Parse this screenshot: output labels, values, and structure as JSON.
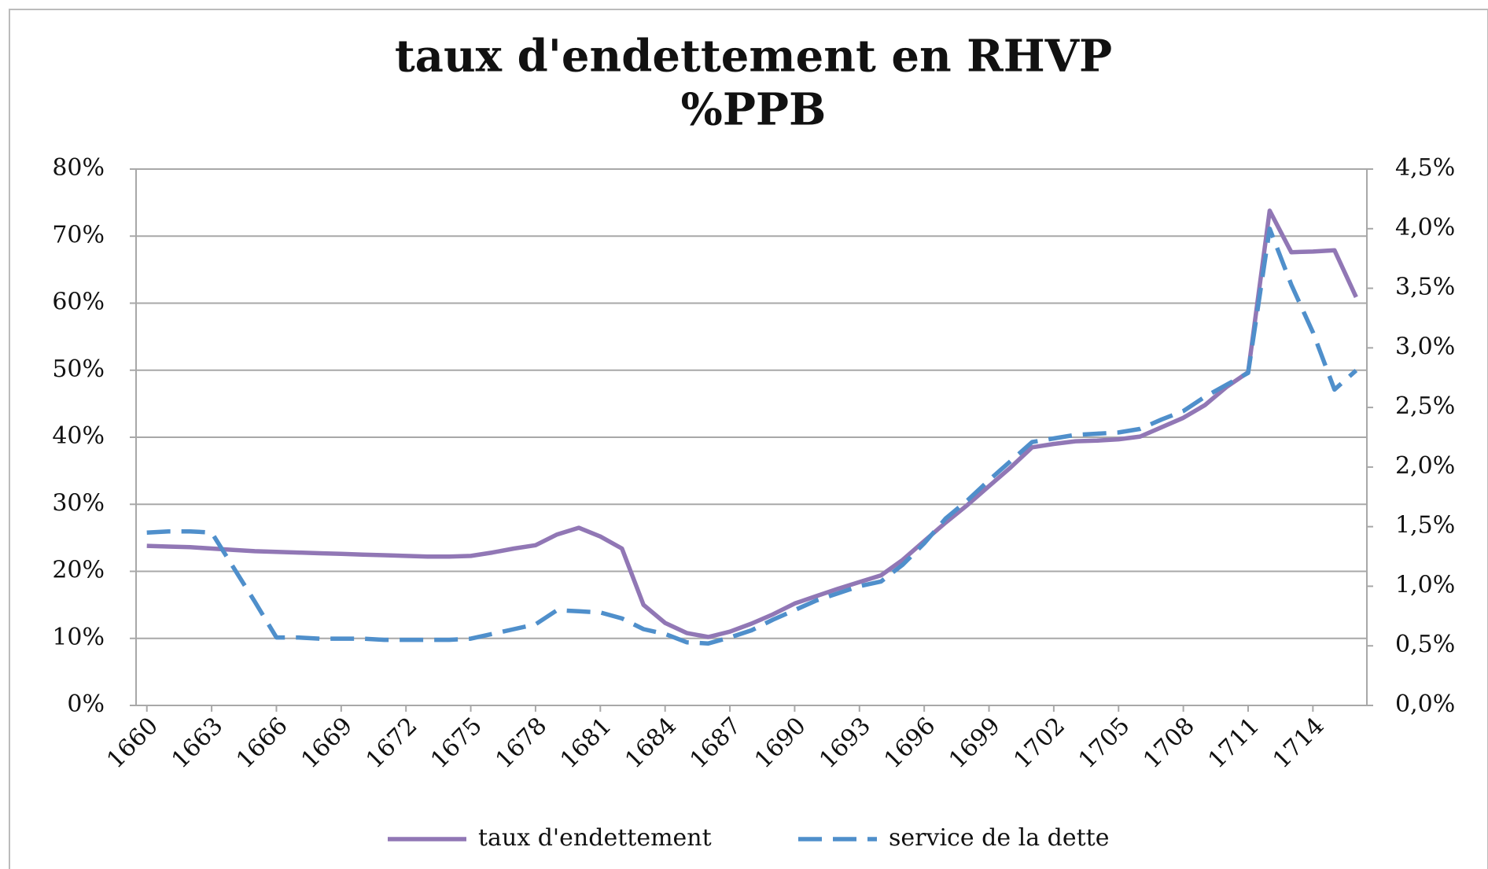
{
  "chart_data": {
    "type": "line",
    "title": "taux d'endettement en RHVP",
    "subtitle": "%PPB",
    "x": [
      1660,
      1661,
      1662,
      1663,
      1664,
      1665,
      1666,
      1667,
      1668,
      1669,
      1670,
      1671,
      1672,
      1673,
      1674,
      1675,
      1676,
      1677,
      1678,
      1679,
      1680,
      1681,
      1682,
      1683,
      1684,
      1685,
      1686,
      1687,
      1688,
      1689,
      1690,
      1691,
      1692,
      1693,
      1694,
      1695,
      1696,
      1697,
      1698,
      1699,
      1700,
      1701,
      1702,
      1703,
      1704,
      1705,
      1706,
      1707,
      1708,
      1709,
      1710,
      1711,
      1712,
      1713,
      1714,
      1715,
      1716
    ],
    "xlim": [
      1659.5,
      1716.5
    ],
    "xticks": [
      1660,
      1663,
      1666,
      1669,
      1672,
      1675,
      1678,
      1681,
      1684,
      1687,
      1690,
      1693,
      1696,
      1699,
      1702,
      1705,
      1708,
      1711,
      1714
    ],
    "ylim": [
      0,
      80
    ],
    "yticks": [
      {
        "value": 0,
        "label": "0%"
      },
      {
        "value": 10,
        "label": "10%"
      },
      {
        "value": 20,
        "label": "20%"
      },
      {
        "value": 30,
        "label": "30%"
      },
      {
        "value": 40,
        "label": "40%"
      },
      {
        "value": 50,
        "label": "50%"
      },
      {
        "value": 60,
        "label": "60%"
      },
      {
        "value": 70,
        "label": "70%"
      },
      {
        "value": 80,
        "label": "80%"
      }
    ],
    "y2lim": [
      0,
      4.5
    ],
    "y2ticks": [
      {
        "value": 0,
        "label": "0,0%"
      },
      {
        "value": 0.5,
        "label": "0,5%"
      },
      {
        "value": 1,
        "label": "1,0%"
      },
      {
        "value": 1.5,
        "label": "1,5%"
      },
      {
        "value": 2,
        "label": "2,0%"
      },
      {
        "value": 2.5,
        "label": "2,5%"
      },
      {
        "value": 3,
        "label": "3,0%"
      },
      {
        "value": 3.5,
        "label": "3,5%"
      },
      {
        "value": 4,
        "label": "4,0%"
      },
      {
        "value": 4.5,
        "label": "4,5%"
      }
    ],
    "grid": true,
    "legend": "bottom",
    "series": [
      {
        "name": "taux d'endettement",
        "color": "#9177b5",
        "dash": false,
        "values": [
          23.8,
          23.7,
          23.6,
          23.4,
          23.2,
          23.0,
          22.9,
          22.8,
          22.7,
          22.6,
          22.5,
          22.4,
          22.3,
          22.2,
          22.2,
          22.3,
          22.8,
          23.4,
          23.9,
          25.5,
          26.5,
          25.2,
          23.4,
          15.0,
          12.3,
          10.8,
          10.2,
          11.0,
          12.2,
          13.6,
          15.2,
          16.3,
          17.4,
          18.4,
          19.4,
          21.7,
          24.5,
          27.3,
          29.9,
          32.7,
          35.5,
          38.5,
          39.0,
          39.4,
          39.5,
          39.7,
          40.1,
          41.5,
          42.9,
          44.8,
          47.5,
          49.7,
          73.8,
          67.6,
          67.7,
          67.9,
          60.9
        ]
      },
      {
        "name": "service de la dette",
        "color": "#4f8fcb",
        "dash": true,
        "axis": "y2",
        "values": [
          1.45,
          1.46,
          1.46,
          1.45,
          1.16,
          0.87,
          0.57,
          0.57,
          0.56,
          0.56,
          0.56,
          0.55,
          0.55,
          0.55,
          0.55,
          0.56,
          0.6,
          0.64,
          0.68,
          0.8,
          0.79,
          0.78,
          0.73,
          0.64,
          0.6,
          0.53,
          0.52,
          0.57,
          0.63,
          0.72,
          0.8,
          0.88,
          0.94,
          1.0,
          1.04,
          1.18,
          1.36,
          1.57,
          1.72,
          1.89,
          2.05,
          2.21,
          2.24,
          2.27,
          2.28,
          2.29,
          2.32,
          2.4,
          2.47,
          2.59,
          2.69,
          2.79,
          4.0,
          3.53,
          3.13,
          2.65,
          2.81
        ]
      }
    ]
  }
}
